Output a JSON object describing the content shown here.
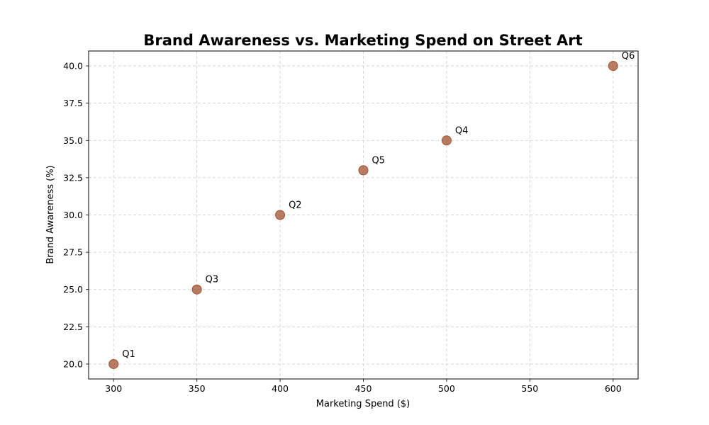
{
  "chart_data": {
    "type": "scatter",
    "title": "Brand Awareness vs. Marketing Spend on Street Art",
    "xlabel": "Marketing Spend ($)",
    "ylabel": "Brand Awareness (%)",
    "xlim": [
      285,
      615
    ],
    "ylim": [
      19,
      41
    ],
    "xticks": [
      300,
      350,
      400,
      450,
      500,
      550,
      600
    ],
    "yticks": [
      20.0,
      22.5,
      25.0,
      27.5,
      30.0,
      32.5,
      35.0,
      37.5,
      40.0
    ],
    "xtick_labels": [
      "300",
      "350",
      "400",
      "450",
      "500",
      "550",
      "600"
    ],
    "ytick_labels": [
      "20.0",
      "22.5",
      "25.0",
      "27.5",
      "30.0",
      "32.5",
      "35.0",
      "37.5",
      "40.0"
    ],
    "grid": true,
    "marker_color": "#a0522d",
    "points": [
      {
        "label": "Q1",
        "x": 300,
        "y": 20
      },
      {
        "label": "Q2",
        "x": 400,
        "y": 30
      },
      {
        "label": "Q3",
        "x": 350,
        "y": 25
      },
      {
        "label": "Q4",
        "x": 500,
        "y": 35
      },
      {
        "label": "Q5",
        "x": 450,
        "y": 33
      },
      {
        "label": "Q6",
        "x": 600,
        "y": 40
      }
    ]
  }
}
